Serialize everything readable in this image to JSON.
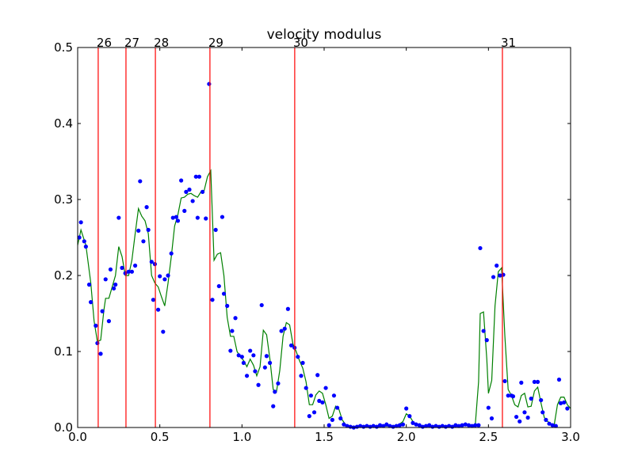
{
  "chart_data": {
    "type": "scatter",
    "title": "velocity modulus",
    "xlim": [
      0,
      3
    ],
    "ylim": [
      0,
      0.5
    ],
    "xticks": [
      {
        "value": 0,
        "label": "0.0"
      },
      0.5,
      {
        "value": 1,
        "label": "1.0"
      },
      1.5,
      {
        "value": 2,
        "label": "2.0"
      },
      2.5,
      {
        "value": 3,
        "label": "3.0"
      }
    ],
    "yticks": [
      {
        "value": 0,
        "label": "0.0"
      },
      0.1,
      0.2,
      0.3,
      0.4,
      0.5
    ],
    "vline_color": "#ff0000",
    "vlines": [
      {
        "x": 0.125,
        "label": "26"
      },
      {
        "x": 0.294,
        "label": "27"
      },
      {
        "x": 0.473,
        "label": "28"
      },
      {
        "x": 0.805,
        "label": "29"
      },
      {
        "x": 1.321,
        "label": "30"
      },
      {
        "x": 2.585,
        "label": "31"
      }
    ],
    "series": [
      {
        "type": "scatter",
        "color": "#0000ff",
        "x": [
          0.01,
          0.02,
          0.04,
          0.05,
          0.07,
          0.08,
          0.11,
          0.12,
          0.14,
          0.15,
          0.17,
          0.19,
          0.2,
          0.22,
          0.23,
          0.25,
          0.27,
          0.29,
          0.31,
          0.33,
          0.35,
          0.37,
          0.38,
          0.4,
          0.42,
          0.43,
          0.45,
          0.46,
          0.47,
          0.49,
          0.5,
          0.52,
          0.53,
          0.55,
          0.57,
          0.58,
          0.6,
          0.61,
          0.63,
          0.65,
          0.66,
          0.68,
          0.7,
          0.72,
          0.73,
          0.74,
          0.76,
          0.78,
          0.8,
          0.82,
          0.84,
          0.86,
          0.88,
          0.89,
          0.91,
          0.93,
          0.94,
          0.96,
          0.98,
          1.0,
          1.01,
          1.03,
          1.05,
          1.07,
          1.08,
          1.1,
          1.12,
          1.14,
          1.15,
          1.17,
          1.19,
          1.2,
          1.22,
          1.24,
          1.26,
          1.28,
          1.3,
          1.32,
          1.34,
          1.36,
          1.37,
          1.39,
          1.41,
          1.42,
          1.44,
          1.46,
          1.47,
          1.49,
          1.51,
          1.53,
          1.55,
          1.56,
          1.58,
          1.6,
          1.62,
          1.64,
          1.66,
          1.68,
          1.7,
          1.72,
          1.74,
          1.76,
          1.78,
          1.8,
          1.82,
          1.84,
          1.86,
          1.88,
          1.9,
          1.92,
          1.94,
          1.96,
          1.98,
          2.0,
          2.02,
          2.04,
          2.06,
          2.08,
          2.1,
          2.12,
          2.14,
          2.16,
          2.18,
          2.2,
          2.22,
          2.24,
          2.26,
          2.28,
          2.3,
          2.32,
          2.34,
          2.36,
          2.38,
          2.4,
          2.42,
          2.44,
          2.45,
          2.47,
          2.49,
          2.5,
          2.52,
          2.53,
          2.55,
          2.57,
          2.59,
          2.6,
          2.62,
          2.64,
          2.65,
          2.67,
          2.69,
          2.7,
          2.72,
          2.74,
          2.76,
          2.78,
          2.8,
          2.82,
          2.83,
          2.85,
          2.87,
          2.89,
          2.91,
          2.93,
          2.94,
          2.96,
          2.98
        ],
        "values": [
          0.25,
          0.27,
          0.245,
          0.238,
          0.188,
          0.165,
          0.134,
          0.111,
          0.097,
          0.153,
          0.195,
          0.14,
          0.208,
          0.183,
          0.188,
          0.276,
          0.21,
          0.203,
          0.205,
          0.205,
          0.213,
          0.259,
          0.324,
          0.245,
          0.29,
          0.26,
          0.218,
          0.168,
          0.215,
          0.155,
          0.199,
          0.126,
          0.195,
          0.2,
          0.229,
          0.276,
          0.277,
          0.272,
          0.325,
          0.285,
          0.31,
          0.313,
          0.298,
          0.33,
          0.276,
          0.33,
          0.31,
          0.275,
          0.452,
          0.168,
          0.26,
          0.186,
          0.277,
          0.176,
          0.16,
          0.101,
          0.127,
          0.144,
          0.095,
          0.093,
          0.085,
          0.068,
          0.101,
          0.095,
          0.074,
          0.056,
          0.161,
          0.079,
          0.094,
          0.085,
          0.028,
          0.047,
          0.058,
          0.127,
          0.13,
          0.156,
          0.108,
          0.105,
          0.093,
          0.068,
          0.085,
          0.052,
          0.015,
          0.042,
          0.02,
          0.069,
          0.035,
          0.033,
          0.052,
          0.003,
          0.01,
          0.042,
          0.026,
          0.012,
          0.004,
          0.002,
          0.001,
          0.0,
          0.001,
          0.002,
          0.001,
          0.002,
          0.001,
          0.002,
          0.001,
          0.003,
          0.002,
          0.004,
          0.002,
          0.001,
          0.002,
          0.003,
          0.004,
          0.025,
          0.015,
          0.006,
          0.004,
          0.003,
          0.001,
          0.002,
          0.003,
          0.001,
          0.002,
          0.001,
          0.002,
          0.001,
          0.002,
          0.001,
          0.003,
          0.002,
          0.003,
          0.004,
          0.003,
          0.002,
          0.003,
          0.003,
          0.236,
          0.127,
          0.115,
          0.026,
          0.012,
          0.198,
          0.213,
          0.2,
          0.201,
          0.061,
          0.042,
          0.042,
          0.041,
          0.014,
          0.008,
          0.059,
          0.02,
          0.013,
          0.038,
          0.06,
          0.06,
          0.036,
          0.02,
          0.01,
          0.005,
          0.003,
          0.002,
          0.063,
          0.032,
          0.033,
          0.025
        ]
      },
      {
        "type": "line",
        "color": "#008000",
        "x": [
          0,
          0.02,
          0.05,
          0.08,
          0.1,
          0.12,
          0.14,
          0.16,
          0.17,
          0.19,
          0.21,
          0.23,
          0.25,
          0.27,
          0.29,
          0.31,
          0.33,
          0.35,
          0.37,
          0.39,
          0.41,
          0.43,
          0.45,
          0.47,
          0.49,
          0.51,
          0.53,
          0.55,
          0.57,
          0.59,
          0.61,
          0.63,
          0.65,
          0.67,
          0.69,
          0.71,
          0.73,
          0.75,
          0.77,
          0.79,
          0.81,
          0.83,
          0.85,
          0.87,
          0.89,
          0.91,
          0.93,
          0.95,
          0.97,
          0.99,
          1.01,
          1.03,
          1.05,
          1.07,
          1.09,
          1.11,
          1.13,
          1.15,
          1.17,
          1.19,
          1.21,
          1.23,
          1.25,
          1.27,
          1.29,
          1.31,
          1.33,
          1.35,
          1.37,
          1.39,
          1.41,
          1.43,
          1.45,
          1.47,
          1.49,
          1.51,
          1.53,
          1.55,
          1.57,
          1.59,
          1.61,
          1.63,
          1.65,
          1.7,
          1.8,
          1.9,
          1.95,
          1.98,
          2.0,
          2.02,
          2.04,
          2.06,
          2.1,
          2.2,
          2.3,
          2.4,
          2.42,
          2.44,
          2.45,
          2.47,
          2.49,
          2.5,
          2.52,
          2.54,
          2.56,
          2.58,
          2.6,
          2.62,
          2.64,
          2.66,
          2.68,
          2.7,
          2.72,
          2.74,
          2.76,
          2.78,
          2.8,
          2.82,
          2.84,
          2.86,
          2.88,
          2.9,
          2.92,
          2.94,
          2.96,
          2.98,
          3.0
        ],
        "values": [
          0.24,
          0.26,
          0.24,
          0.19,
          0.14,
          0.113,
          0.115,
          0.155,
          0.17,
          0.17,
          0.185,
          0.2,
          0.238,
          0.225,
          0.2,
          0.2,
          0.22,
          0.255,
          0.288,
          0.278,
          0.272,
          0.255,
          0.2,
          0.19,
          0.185,
          0.172,
          0.16,
          0.19,
          0.225,
          0.265,
          0.28,
          0.302,
          0.303,
          0.307,
          0.308,
          0.305,
          0.303,
          0.31,
          0.312,
          0.33,
          0.338,
          0.22,
          0.228,
          0.23,
          0.2,
          0.145,
          0.12,
          0.12,
          0.1,
          0.093,
          0.088,
          0.08,
          0.09,
          0.082,
          0.068,
          0.08,
          0.128,
          0.122,
          0.09,
          0.05,
          0.047,
          0.075,
          0.12,
          0.138,
          0.135,
          0.11,
          0.1,
          0.088,
          0.078,
          0.06,
          0.03,
          0.03,
          0.043,
          0.048,
          0.045,
          0.03,
          0.012,
          0.015,
          0.028,
          0.024,
          0.01,
          0.004,
          0.001,
          0.0,
          0.001,
          0.002,
          0.003,
          0.008,
          0.018,
          0.015,
          0.008,
          0.004,
          0.002,
          0.001,
          0.002,
          0.003,
          0.004,
          0.06,
          0.15,
          0.152,
          0.09,
          0.045,
          0.062,
          0.16,
          0.205,
          0.21,
          0.12,
          0.05,
          0.042,
          0.03,
          0.027,
          0.042,
          0.045,
          0.027,
          0.028,
          0.048,
          0.053,
          0.032,
          0.013,
          0.008,
          0.005,
          0.003,
          0.03,
          0.04,
          0.04,
          0.03,
          0.025
        ]
      }
    ]
  }
}
